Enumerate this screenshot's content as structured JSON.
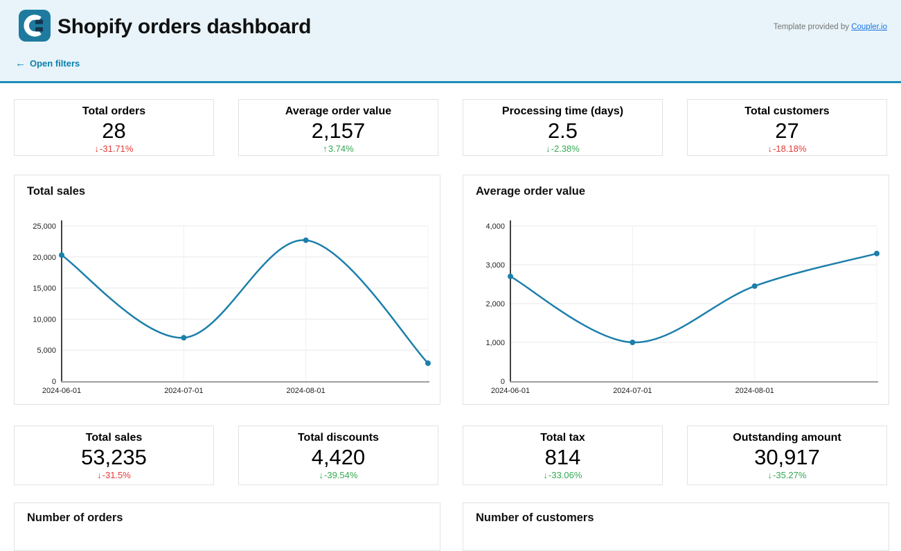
{
  "header": {
    "title": "Shopify orders dashboard",
    "template_prefix": "Template provided by",
    "template_link": "Coupler.io",
    "open_filters_arrow": "←",
    "open_filters_label": "Open filters"
  },
  "colors": {
    "brand_teal": "#1e7a9e",
    "brand_navy": "#14344f",
    "header_bg": "#e8f4f9",
    "separator_blue": "#1e8cba",
    "link_blue": "#1a73e8",
    "open_filters_blue": "#0b7fad",
    "negative_red": "#e53935",
    "positive_green": "#34a853",
    "chart_line": "#1c7fab"
  },
  "kpi_row1": [
    {
      "label": "Total orders",
      "value": "28",
      "arrow": "↓",
      "delta": "-31.71%",
      "delta_color": "#e53935"
    },
    {
      "label": "Average order value",
      "value": "2,157",
      "arrow": "↑",
      "delta": "3.74%",
      "delta_color": "#34a853"
    },
    {
      "label": "Processing time (days)",
      "value": "2.5",
      "arrow": "↓",
      "delta": "-2.38%",
      "delta_color": "#34a853"
    },
    {
      "label": "Total customers",
      "value": "27",
      "arrow": "↓",
      "delta": "-18.18%",
      "delta_color": "#e53935"
    }
  ],
  "kpi_row2": [
    {
      "label": "Total sales",
      "value": "53,235",
      "arrow": "↓",
      "delta": "-31.5%",
      "delta_color": "#e53935"
    },
    {
      "label": "Total discounts",
      "value": "4,420",
      "arrow": "↓",
      "delta": "-39.54%",
      "delta_color": "#34a853"
    },
    {
      "label": "Total tax",
      "value": "814",
      "arrow": "↓",
      "delta": "-33.06%",
      "delta_color": "#34a853"
    },
    {
      "label": "Outstanding amount",
      "value": "30,917",
      "arrow": "↓",
      "delta": "-35.27%",
      "delta_color": "#34a853"
    }
  ],
  "chart_data": [
    {
      "type": "line",
      "title": "Total sales",
      "x": [
        "2024-06-01",
        "2024-07-01",
        "2024-08-01",
        ""
      ],
      "values": [
        20300,
        7000,
        22700,
        2900
      ],
      "ylim": [
        0,
        25000
      ],
      "yticks": [
        0,
        5000,
        10000,
        15000,
        20000,
        25000
      ],
      "xlabel": "",
      "ylabel": "",
      "grid": true,
      "legend": "none",
      "line_color": "#1c7fab",
      "markers": true,
      "smooth": true
    },
    {
      "type": "line",
      "title": "Average order value",
      "x": [
        "2024-06-01",
        "2024-07-01",
        "2024-08-01",
        ""
      ],
      "values": [
        2700,
        1000,
        2450,
        3290
      ],
      "ylim": [
        0,
        4000
      ],
      "yticks": [
        0,
        1000,
        2000,
        3000,
        4000
      ],
      "xlabel": "",
      "ylabel": "",
      "grid": true,
      "legend": "none",
      "line_color": "#1c7fab",
      "markers": true,
      "smooth": true
    }
  ],
  "bottom_charts": [
    {
      "title": "Number of orders"
    },
    {
      "title": "Number of customers"
    }
  ]
}
